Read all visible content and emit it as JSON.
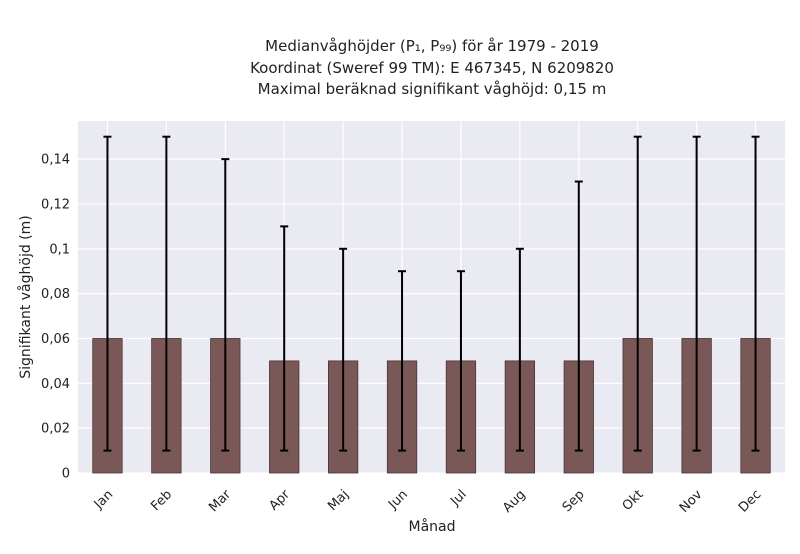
{
  "chart_data": {
    "type": "bar",
    "title_lines": [
      "Medianvåghöjder (P₁, P₉₉) för år 1979 - 2019",
      "Koordinat (Sweref 99 TM): E 467345, N 6209820",
      "Maximal beräknad signifikant våghöjd: 0,15 m"
    ],
    "xlabel": "Månad",
    "ylabel": "Signifikant våghöjd (m)",
    "categories": [
      "Jan",
      "Feb",
      "Mar",
      "Apr",
      "Maj",
      "Jun",
      "Jul",
      "Aug",
      "Sep",
      "Okt",
      "Nov",
      "Dec"
    ],
    "series": [
      {
        "values": [
          0.06,
          0.06,
          0.06,
          0.05,
          0.05,
          0.05,
          0.05,
          0.05,
          0.05,
          0.06,
          0.06,
          0.06
        ],
        "error_low": [
          0.01,
          0.01,
          0.01,
          0.01,
          0.01,
          0.01,
          0.01,
          0.01,
          0.01,
          0.01,
          0.01,
          0.01
        ],
        "error_high": [
          0.15,
          0.15,
          0.14,
          0.11,
          0.1,
          0.09,
          0.09,
          0.1,
          0.13,
          0.15,
          0.15,
          0.15
        ]
      }
    ],
    "ylim": [
      0,
      0.157
    ],
    "yticks": [
      0,
      0.02,
      0.04,
      0.06,
      0.08,
      0.1,
      0.12,
      0.14
    ],
    "ytick_labels": [
      "0",
      "0,02",
      "0,04",
      "0,06",
      "0,08",
      "0,1",
      "0,12",
      "0,14"
    ],
    "grid": true,
    "colors": {
      "bar": "#7b5858",
      "bar_edge": "#4a3434",
      "error": "#000000",
      "plot_bg": "#eaeaf2",
      "grid": "#ffffff"
    }
  }
}
